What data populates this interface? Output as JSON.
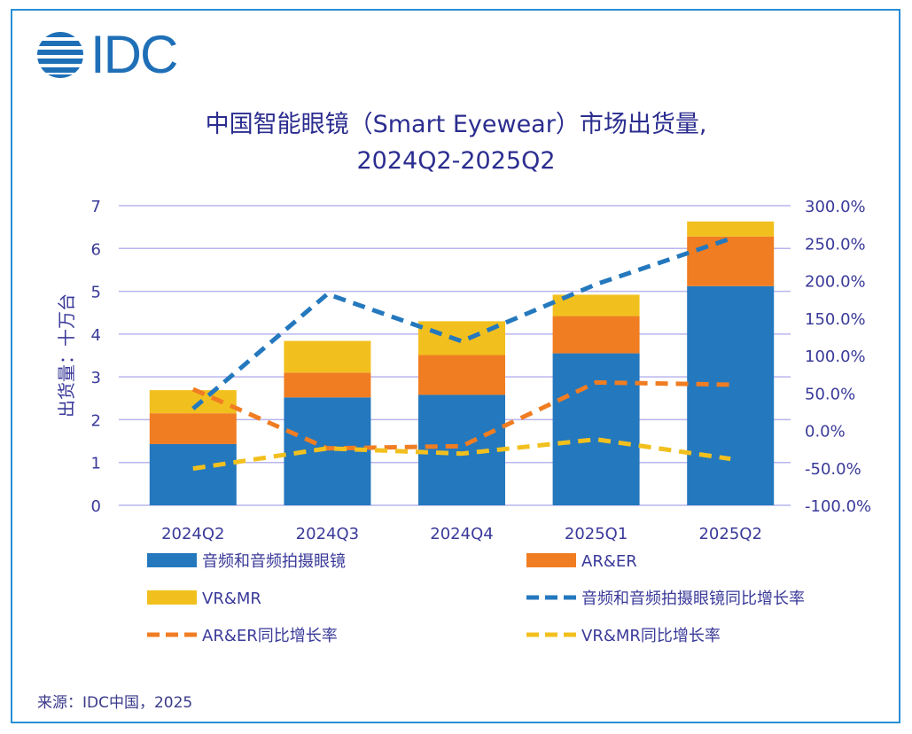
{
  "logo": {
    "text": "IDC"
  },
  "title_line1": "中国智能眼镜（Smart Eyewear）市场出货量,",
  "title_line2": "2024Q2-2025Q2",
  "source": "来源：IDC中国，2025",
  "chart_data": {
    "type": "bar+line",
    "title": "中国智能眼镜（Smart Eyewear）市场出货量, 2024Q2-2025Q2",
    "ylabel": "出货量：十万台",
    "categories": [
      "2024Q2",
      "2024Q3",
      "2024Q4",
      "2025Q1",
      "2025Q2"
    ],
    "ylim": [
      0,
      7
    ],
    "yticks": [
      "0",
      "1",
      "2",
      "3",
      "4",
      "5",
      "6",
      "7"
    ],
    "y2lim": [
      -100,
      300
    ],
    "y2ticks": [
      "-100.0%",
      "-50.0%",
      "0.0%",
      "50.0%",
      "100.0%",
      "150.0%",
      "200.0%",
      "250.0%",
      "300.0%"
    ],
    "grid": true,
    "legend_placement": "bottom",
    "bars_stacked": true,
    "series": [
      {
        "name": "音频和音频拍摄眼镜",
        "kind": "bar",
        "color": "#2478bd",
        "values": [
          1.43,
          2.52,
          2.58,
          3.55,
          5.12
        ]
      },
      {
        "name": "AR&ER",
        "kind": "bar",
        "color": "#f07d22",
        "values": [
          0.72,
          0.58,
          0.93,
          0.87,
          1.16
        ]
      },
      {
        "name": "VR&MR",
        "kind": "bar",
        "color": "#f2c01e",
        "values": [
          0.54,
          0.74,
          0.79,
          0.5,
          0.35
        ]
      },
      {
        "name": "音频和音频拍摄眼镜同比增长率",
        "kind": "line",
        "axis": "right",
        "color": "#2478bd",
        "values": [
          29,
          182,
          119,
          195,
          256
        ]
      },
      {
        "name": "AR&ER同比增长率",
        "kind": "line",
        "axis": "right",
        "color": "#f07d22",
        "values": [
          55,
          -24,
          -21,
          64,
          61
        ]
      },
      {
        "name": "VR&MR同比增长率",
        "kind": "line",
        "axis": "right",
        "color": "#f2c01e",
        "values": [
          -51,
          -24,
          -31,
          -12,
          -38
        ]
      }
    ]
  }
}
